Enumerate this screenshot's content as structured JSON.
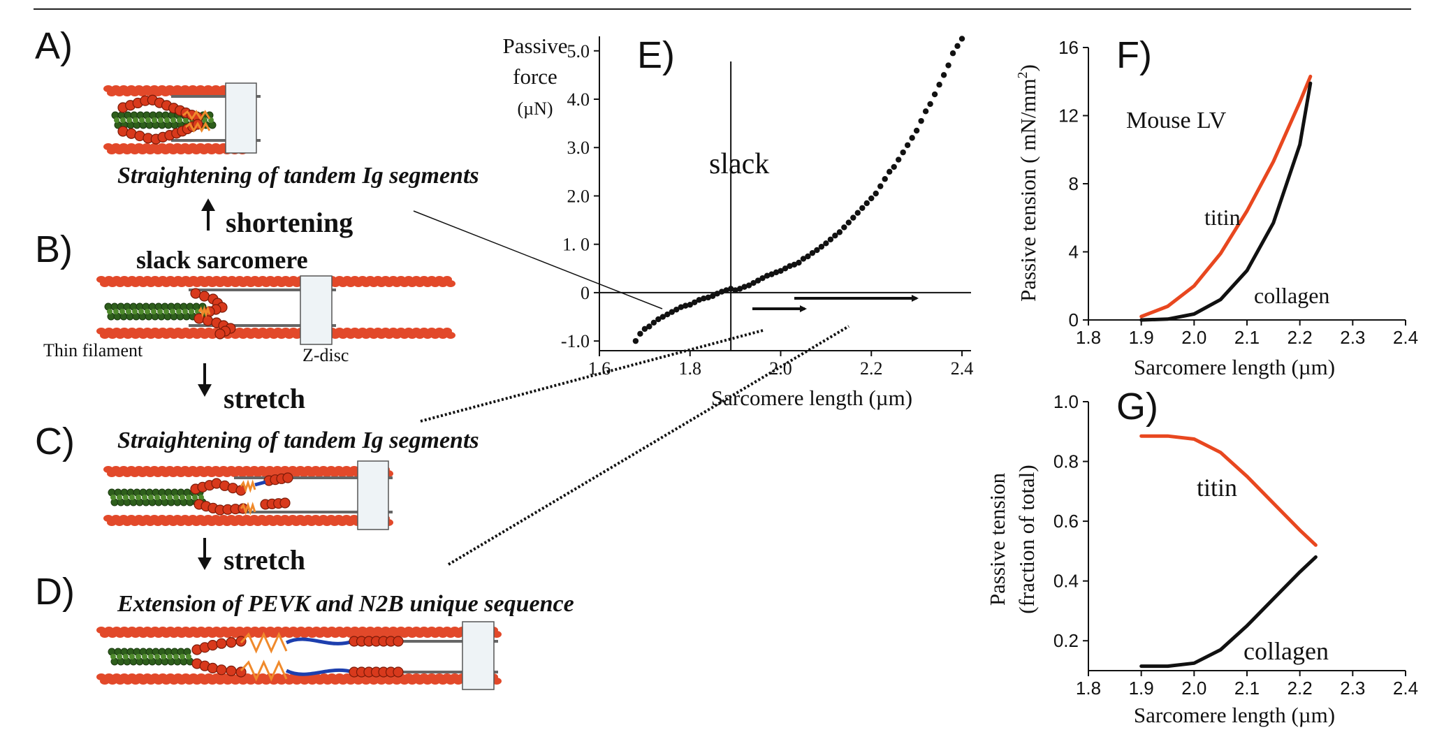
{
  "panels": {
    "A": {
      "letter": "A)",
      "caption": "Straightening of tandem Ig segments",
      "step": "shortening"
    },
    "B": {
      "letter": "B)",
      "title": "slack sarcomere",
      "label_thin": "Thin filament",
      "label_zdisc": "Z-disc",
      "step": "stretch"
    },
    "C": {
      "letter": "C)",
      "caption": "Straightening of tandem Ig segments",
      "step": "stretch"
    },
    "D": {
      "letter": "D)",
      "caption": "Extension of PEVK and N2B unique sequence"
    }
  },
  "colors": {
    "actin": "#e2492a",
    "myosin": "#2e5e1c",
    "titin_ig": "#d8391c",
    "pevk": "#f08a2c",
    "n2b": "#1d3fae",
    "zdisc": "#eef3f6",
    "titin_curve": "#e8471f",
    "collagen_curve": "#111111"
  },
  "chart_data": [
    {
      "id": "E",
      "type": "scatter",
      "letter": "E)",
      "ylabel_lines": [
        "Passive",
        "force",
        "(µN)"
      ],
      "xlabel": "Sarcomere length (µm)",
      "annotation": "slack",
      "slack_x": 1.89,
      "xlim": [
        1.6,
        2.42
      ],
      "ylim": [
        -1.2,
        5.3
      ],
      "xticks": [
        "1.6",
        "1.8",
        "2.0",
        "2.2",
        "2.4"
      ],
      "yticks": [
        "-1.0",
        "0",
        "1. 0",
        "2.0",
        "3.0",
        "4.0",
        "5.0"
      ],
      "xtick_values": [
        1.6,
        1.8,
        2.0,
        2.2,
        2.4
      ],
      "ytick_values": [
        -1.0,
        0,
        1.0,
        2.0,
        3.0,
        4.0,
        5.0
      ],
      "series": [
        {
          "x": [
            1.68,
            1.69,
            1.7,
            1.71,
            1.72,
            1.73,
            1.74,
            1.75,
            1.76,
            1.77,
            1.78,
            1.79,
            1.8,
            1.81,
            1.82,
            1.83,
            1.84,
            1.85,
            1.86,
            1.87,
            1.88,
            1.89,
            1.9,
            1.91,
            1.92,
            1.93,
            1.94,
            1.95,
            1.96,
            1.97,
            1.98,
            1.99,
            2.0,
            2.01,
            2.02,
            2.03,
            2.04,
            2.05,
            2.06,
            2.07,
            2.08,
            2.09,
            2.1,
            2.11,
            2.12,
            2.13,
            2.14,
            2.15,
            2.16,
            2.17,
            2.18,
            2.19,
            2.2,
            2.21,
            2.22,
            2.23,
            2.24,
            2.25,
            2.26,
            2.27,
            2.28,
            2.29,
            2.3,
            2.31,
            2.32,
            2.33,
            2.34,
            2.35,
            2.36,
            2.37,
            2.38,
            2.39,
            2.4
          ],
          "y": [
            -1.0,
            -0.85,
            -0.75,
            -0.7,
            -0.62,
            -0.55,
            -0.5,
            -0.45,
            -0.4,
            -0.35,
            -0.3,
            -0.27,
            -0.25,
            -0.2,
            -0.15,
            -0.12,
            -0.1,
            -0.07,
            -0.02,
            0.02,
            0.05,
            0.08,
            0.05,
            0.08,
            0.12,
            0.15,
            0.2,
            0.25,
            0.3,
            0.35,
            0.38,
            0.42,
            0.45,
            0.5,
            0.55,
            0.58,
            0.62,
            0.7,
            0.75,
            0.82,
            0.88,
            0.95,
            1.02,
            1.1,
            1.18,
            1.25,
            1.35,
            1.45,
            1.55,
            1.65,
            1.75,
            1.85,
            1.95,
            2.05,
            2.2,
            2.35,
            2.5,
            2.6,
            2.75,
            2.9,
            3.05,
            3.2,
            3.35,
            3.55,
            3.75,
            3.9,
            4.1,
            4.3,
            4.5,
            4.7,
            4.95,
            5.1,
            5.25
          ]
        }
      ]
    },
    {
      "id": "F",
      "type": "line",
      "letter": "F)",
      "ylabel": "Passive tension ( mN/mm",
      "ylabel_sup": "2",
      "ylabel_end": ")",
      "xlabel": "Sarcomere length (µm)",
      "annotation": "Mouse LV",
      "xlim": [
        1.8,
        2.4
      ],
      "ylim": [
        0,
        16
      ],
      "xticks": [
        "1.8",
        "1.9",
        "2.0",
        "2.1",
        "2.2",
        "2.3",
        "2.4"
      ],
      "yticks": [
        "0",
        "4",
        "8",
        "12",
        "16"
      ],
      "xtick_values": [
        1.8,
        1.9,
        2.0,
        2.1,
        2.2,
        2.3,
        2.4
      ],
      "ytick_values": [
        0,
        4,
        8,
        12,
        16
      ],
      "x": [
        1.9,
        1.95,
        2.0,
        2.05,
        2.1,
        2.15,
        2.2,
        2.22
      ],
      "series": [
        {
          "name": "titin",
          "values": [
            0.2,
            0.8,
            2.0,
            3.9,
            6.4,
            9.3,
            12.8,
            14.3
          ]
        },
        {
          "name": "collagen",
          "values": [
            0.0,
            0.05,
            0.35,
            1.2,
            2.9,
            5.7,
            10.3,
            13.9
          ]
        }
      ]
    },
    {
      "id": "G",
      "type": "line",
      "letter": "G)",
      "ylabel_lines": [
        "Passive tension",
        "(fraction of total)"
      ],
      "xlabel": "Sarcomere length (µm)",
      "xlim": [
        1.8,
        2.4
      ],
      "ylim": [
        0.1,
        1.0
      ],
      "xticks": [
        "1.8",
        "1.9",
        "2.0",
        "2.1",
        "2.2",
        "2.3",
        "2.4"
      ],
      "yticks": [
        "0.2",
        "0.4",
        "0.6",
        "0.8",
        "1.0"
      ],
      "xtick_values": [
        1.8,
        1.9,
        2.0,
        2.1,
        2.2,
        2.3,
        2.4
      ],
      "ytick_values": [
        0.2,
        0.4,
        0.6,
        0.8,
        1.0
      ],
      "x": [
        1.9,
        1.95,
        2.0,
        2.05,
        2.1,
        2.15,
        2.2,
        2.23
      ],
      "series": [
        {
          "name": "titin",
          "values": [
            0.885,
            0.885,
            0.875,
            0.83,
            0.75,
            0.66,
            0.57,
            0.52
          ]
        },
        {
          "name": "collagen",
          "values": [
            0.115,
            0.115,
            0.125,
            0.17,
            0.25,
            0.34,
            0.43,
            0.48
          ]
        }
      ]
    }
  ]
}
